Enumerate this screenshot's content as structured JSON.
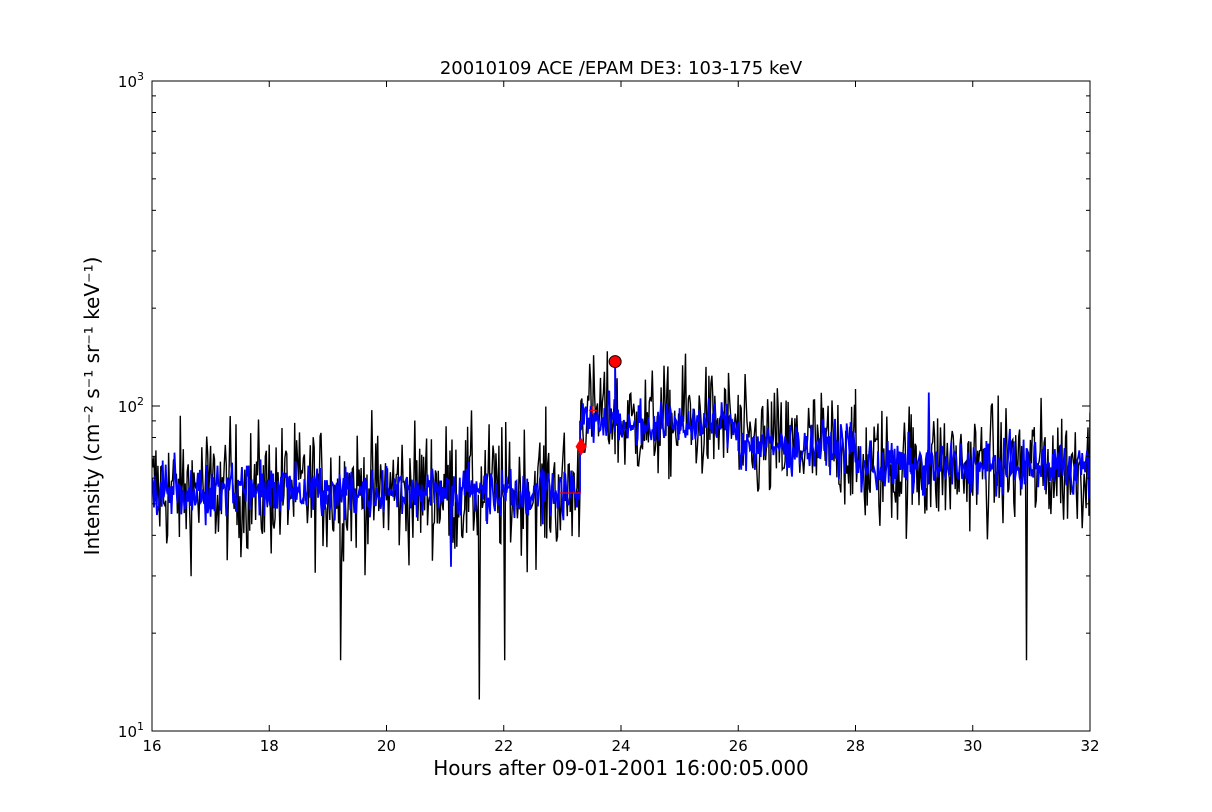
{
  "chart_data": {
    "type": "line",
    "title": "20010109 ACE /EPAM DE3: 103-175 keV",
    "xlabel": "Hours after 09-01-2001 16:00:05.000",
    "ylabel": "Intensity (cm⁻² s⁻¹ sr⁻¹ keV⁻¹)",
    "xlim": [
      16,
      32
    ],
    "ylim": [
      10,
      1000
    ],
    "yscale": "log",
    "grid": false,
    "x_ticks": [
      16,
      18,
      20,
      22,
      24,
      26,
      28,
      30,
      32
    ],
    "x_tick_labels": [
      "16",
      "18",
      "20",
      "22",
      "24",
      "26",
      "28",
      "30",
      "32"
    ],
    "y_ticks": [
      10,
      100,
      1000
    ],
    "y_tick_labels": [
      {
        "base": "10",
        "exp": "1"
      },
      {
        "base": "10",
        "exp": "2"
      },
      {
        "base": "10",
        "exp": "3"
      }
    ],
    "series": [
      {
        "color": "#000000",
        "style": "noisy-raw",
        "segments": [
          {
            "x_start": 16.0,
            "x_end": 23.3,
            "baseline": 55,
            "spread": 0.42
          },
          {
            "x_start": 23.3,
            "x_end": 23.9,
            "baseline": 95,
            "spread": 0.35
          },
          {
            "x_start": 23.9,
            "x_end": 26.0,
            "baseline": 88,
            "spread": 0.35
          },
          {
            "x_start": 26.0,
            "x_end": 28.0,
            "baseline": 75,
            "spread": 0.38
          },
          {
            "x_start": 28.0,
            "x_end": 32.0,
            "baseline": 65,
            "spread": 0.4
          }
        ],
        "spikes": [
          {
            "x": 21.58,
            "y": 12.5
          },
          {
            "x": 22.02,
            "y": 16.5
          },
          {
            "x": 19.22,
            "y": 16.5
          },
          {
            "x": 30.92,
            "y": 16.5
          },
          {
            "x": 23.9,
            "y": 135
          },
          {
            "x": 25.1,
            "y": 145
          }
        ]
      },
      {
        "color": "#0000ff",
        "style": "smoothed",
        "segments": [
          {
            "x_start": 16.0,
            "x_end": 23.3,
            "baseline": 55,
            "spread": 0.18
          },
          {
            "x_start": 23.3,
            "x_end": 23.9,
            "baseline": 90,
            "spread": 0.14
          },
          {
            "x_start": 23.9,
            "x_end": 26.0,
            "baseline": 88,
            "spread": 0.14
          },
          {
            "x_start": 26.0,
            "x_end": 28.0,
            "baseline": 75,
            "spread": 0.16
          },
          {
            "x_start": 28.0,
            "x_end": 32.0,
            "baseline": 65,
            "spread": 0.17
          }
        ],
        "spikes": [
          {
            "x": 23.9,
            "y": 135
          },
          {
            "x": 29.25,
            "y": 110
          },
          {
            "x": 21.1,
            "y": 32
          }
        ]
      }
    ],
    "markers": [
      {
        "shape": "circle",
        "color": "#ff0000",
        "x": 23.9,
        "y": 137
      },
      {
        "shape": "diamond",
        "color": "#ff0000",
        "x": 23.32,
        "y": 75
      },
      {
        "shape": "plus",
        "color": "#ff0000",
        "x": 23.52,
        "y": 97
      },
      {
        "shape": "hline",
        "color": "#ff0000",
        "x_start": 22.95,
        "x_end": 23.32,
        "y": 54
      }
    ]
  }
}
